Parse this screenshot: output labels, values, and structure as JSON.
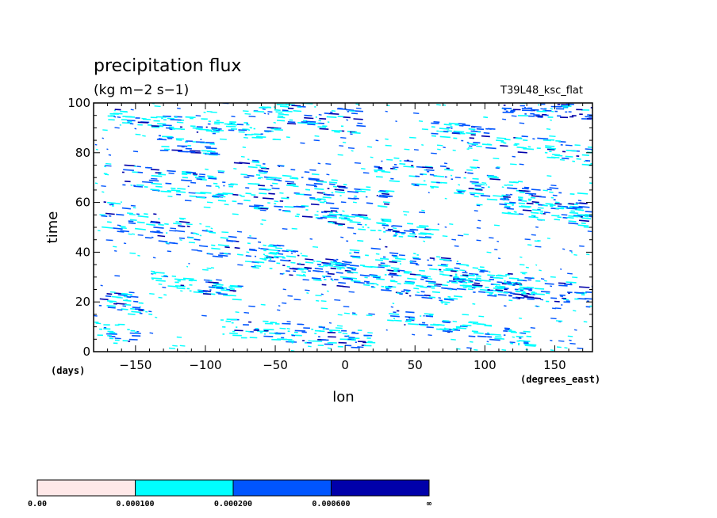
{
  "chart_data": {
    "type": "heatmap",
    "title": "precipitation flux",
    "units": "(kg m−2 s−1)",
    "experiment": "T39L48_ksc_flat",
    "xlabel": "lon",
    "xunits": "(degrees_east)",
    "ylabel": "time",
    "yunits": "(days)",
    "xlim": [
      -180,
      177
    ],
    "ylim": [
      0,
      100
    ],
    "xticks": [
      -150,
      -100,
      -50,
      0,
      50,
      100,
      150
    ],
    "xtick_labels": [
      "−150",
      "−100",
      "−50",
      "0",
      "50",
      "100",
      "150"
    ],
    "yticks": [
      0,
      20,
      40,
      60,
      80,
      100
    ],
    "ytick_labels": [
      "0",
      "20",
      "40",
      "60",
      "80",
      "100"
    ],
    "grid": false,
    "colorbar": {
      "levels": [
        "0.00",
        "0.000100",
        "0.000200",
        "0.000600",
        "∞"
      ],
      "colors": [
        "#ffe8e8",
        "#00ffff",
        "#0055ff",
        "#0000aa"
      ]
    },
    "bands": [
      {
        "lon0": -180,
        "t0": 22,
        "slope": 0.12,
        "len": 40,
        "width": 4,
        "intensity": 0.6
      },
      {
        "lon0": -175,
        "t0": 55,
        "slope": 0.14,
        "len": 180,
        "width": 6,
        "intensity": 0.9
      },
      {
        "lon0": -160,
        "t0": 72,
        "slope": 0.1,
        "len": 150,
        "width": 5,
        "intensity": 0.6
      },
      {
        "lon0": -170,
        "t0": 95,
        "slope": 0.06,
        "len": 120,
        "width": 3,
        "intensity": 0.5
      },
      {
        "lon0": -135,
        "t0": 84,
        "slope": 0.05,
        "len": 40,
        "width": 3,
        "intensity": 0.8
      },
      {
        "lon0": -70,
        "t0": 99,
        "slope": 0.09,
        "len": 80,
        "width": 5,
        "intensity": 0.8
      },
      {
        "lon0": -80,
        "t0": 75,
        "slope": 0.12,
        "len": 110,
        "width": 4,
        "intensity": 0.7
      },
      {
        "lon0": -20,
        "t0": 55,
        "slope": 0.1,
        "len": 80,
        "width": 3,
        "intensity": 0.5
      },
      {
        "lon0": -60,
        "t0": 40,
        "slope": 0.13,
        "len": 140,
        "width": 4,
        "intensity": 0.7
      },
      {
        "lon0": -90,
        "t0": 10,
        "slope": 0.05,
        "len": 110,
        "width": 4,
        "intensity": 0.6
      },
      {
        "lon0": 0,
        "t0": 41,
        "slope": 0.12,
        "len": 130,
        "width": 5,
        "intensity": 0.8
      },
      {
        "lon0": 20,
        "t0": 75,
        "slope": 0.11,
        "len": 150,
        "width": 5,
        "intensity": 0.7
      },
      {
        "lon0": 60,
        "t0": 90,
        "slope": 0.1,
        "len": 120,
        "width": 4,
        "intensity": 0.6
      },
      {
        "lon0": 110,
        "t0": 98,
        "slope": 0.03,
        "len": 70,
        "width": 3,
        "intensity": 0.9
      },
      {
        "lon0": 100,
        "t0": 28,
        "slope": 0.08,
        "len": 80,
        "width": 5,
        "intensity": 0.9
      },
      {
        "lon0": 70,
        "t0": 30,
        "slope": 0.12,
        "len": 60,
        "width": 4,
        "intensity": 0.6
      },
      {
        "lon0": -140,
        "t0": 30,
        "slope": 0.1,
        "len": 60,
        "width": 3,
        "intensity": 0.4
      },
      {
        "lon0": 110,
        "t0": 60,
        "slope": 0.12,
        "len": 70,
        "width": 4,
        "intensity": 0.6
      },
      {
        "lon0": -180,
        "t0": 8,
        "slope": 0.05,
        "len": 30,
        "width": 4,
        "intensity": 0.6
      },
      {
        "lon0": 30,
        "t0": 15,
        "slope": 0.1,
        "len": 100,
        "width": 3,
        "intensity": 0.5
      }
    ]
  }
}
